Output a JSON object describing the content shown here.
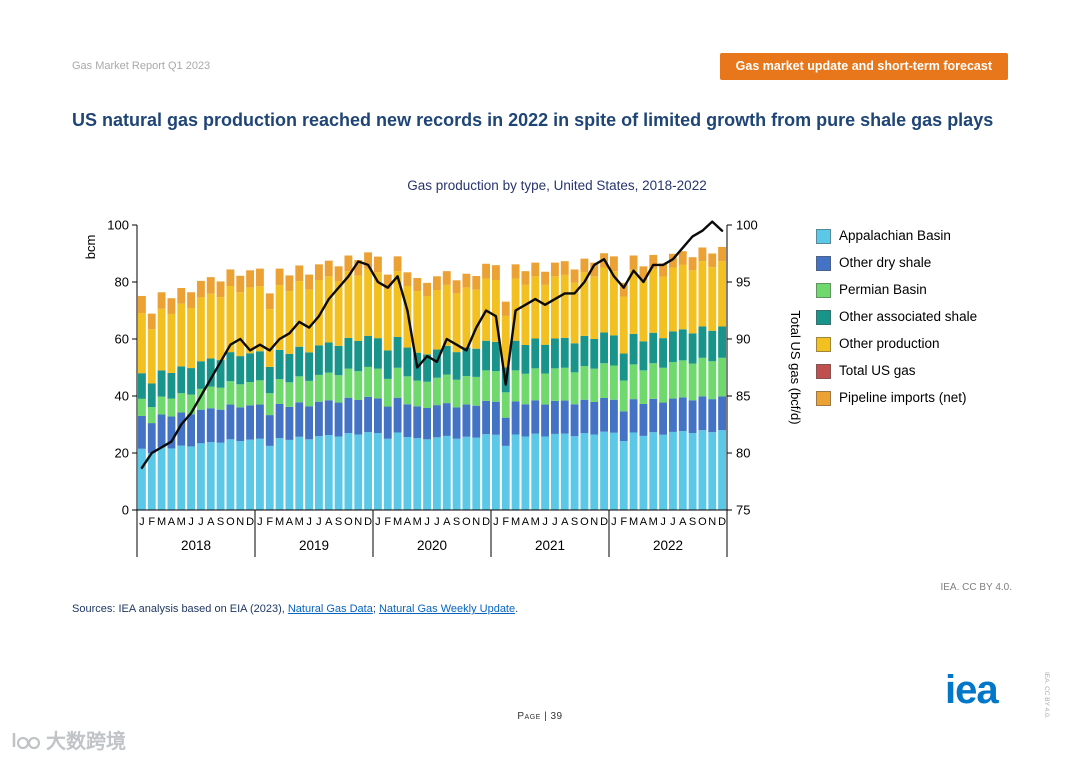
{
  "page": {
    "header_left": "Gas Market Report Q1 2023",
    "banner": "Gas market update and short-term forecast",
    "title": "US natural gas production reached new records in 2022 in spite of limited growth from pure shale gas plays",
    "credit": "IEA. CC BY 4.0.",
    "sources": {
      "prefix": "Sources: IEA analysis based on EIA (2023), ",
      "link1": "Natural Gas Data",
      "separator": "; ",
      "link2": "Natural Gas Weekly Update",
      "suffix": "."
    },
    "footer_page": "Page | 39",
    "logo": "iea",
    "side_note": "IEA. CC BY 4.0.",
    "watermark": "大数跨境",
    "colors": {
      "banner": "#E8761A",
      "title": "#1F4577",
      "link": "#0563C1",
      "logo": "#0077C8"
    }
  },
  "chart_data": {
    "type": "bar",
    "overlay": "line",
    "title": "Gas production by type, United States, 2018-2022",
    "ylabel_left": "bcm",
    "ylabel_right": "Total US gas (bcf/d)",
    "ylim_left": [
      0,
      100
    ],
    "ylim_right": [
      75,
      100
    ],
    "yticks_left": [
      0,
      20,
      40,
      60,
      80,
      100
    ],
    "yticks_right": [
      75,
      80,
      85,
      90,
      95,
      100
    ],
    "grid": false,
    "legend_position": "right",
    "years": [
      "2018",
      "2019",
      "2020",
      "2021",
      "2022"
    ],
    "month_letters": [
      "J",
      "F",
      "M",
      "A",
      "M",
      "J",
      "J",
      "A",
      "S",
      "O",
      "N",
      "D"
    ],
    "series": [
      {
        "name": "Appalachian Basin",
        "color": "#5BC8E8",
        "values": [
          21.5,
          20.0,
          22.0,
          21.6,
          22.6,
          22.3,
          23.4,
          23.8,
          23.6,
          24.8,
          24.2,
          24.7,
          25.0,
          22.5,
          25.2,
          24.6,
          25.7,
          24.8,
          25.9,
          26.3,
          25.8,
          27.0,
          26.5,
          27.3,
          27.0,
          25.0,
          27.2,
          25.6,
          25.2,
          24.8,
          25.5,
          26.0,
          25.0,
          25.7,
          25.4,
          26.6,
          26.4,
          22.5,
          26.5,
          25.8,
          26.8,
          25.8,
          26.7,
          26.8,
          25.9,
          27.0,
          26.5,
          27.5,
          27.1,
          24.2,
          27.2,
          26.0,
          27.3,
          26.4,
          27.4,
          27.7,
          27.0,
          28.0,
          27.3,
          28.0
        ]
      },
      {
        "name": "Other dry shale",
        "color": "#4472C4",
        "values": [
          11.5,
          10.5,
          11.5,
          11.2,
          11.6,
          11.3,
          11.8,
          11.9,
          11.6,
          12.2,
          11.8,
          12.0,
          12.0,
          10.8,
          12.0,
          11.6,
          12.1,
          11.6,
          12.1,
          12.2,
          11.9,
          12.4,
          12.1,
          12.4,
          12.2,
          11.3,
          12.2,
          11.5,
          11.2,
          11.0,
          11.3,
          11.5,
          11.0,
          11.3,
          11.2,
          11.7,
          11.6,
          9.9,
          11.6,
          11.3,
          11.7,
          11.2,
          11.6,
          11.6,
          11.2,
          11.7,
          11.4,
          11.8,
          11.6,
          10.4,
          11.7,
          11.2,
          11.7,
          11.3,
          11.7,
          11.8,
          11.5,
          11.9,
          11.6,
          11.9
        ]
      },
      {
        "name": "Permian Basin",
        "color": "#6FD96E",
        "values": [
          6.0,
          5.6,
          6.3,
          6.3,
          6.8,
          6.9,
          7.3,
          7.6,
          7.7,
          8.2,
          8.1,
          8.2,
          8.5,
          7.7,
          8.7,
          8.6,
          9.1,
          8.9,
          9.4,
          9.7,
          9.6,
          10.2,
          10.1,
          10.5,
          10.4,
          9.7,
          10.5,
          9.8,
          9.0,
          9.2,
          9.6,
          10.0,
          9.7,
          10.0,
          10.1,
          10.7,
          10.7,
          8.9,
          10.9,
          10.7,
          11.2,
          10.9,
          11.4,
          11.5,
          11.2,
          11.8,
          11.7,
          12.2,
          12.0,
          10.8,
          12.2,
          11.8,
          12.5,
          12.2,
          12.8,
          13.0,
          12.9,
          13.5,
          13.3,
          13.5
        ]
      },
      {
        "name": "Other associated shale",
        "color": "#18948B",
        "values": [
          9.0,
          8.3,
          9.2,
          9.0,
          9.4,
          9.3,
          9.7,
          9.9,
          9.7,
          10.2,
          9.9,
          10.1,
          10.2,
          9.2,
          10.3,
          10.0,
          10.4,
          10.0,
          10.4,
          10.6,
          10.3,
          10.8,
          10.6,
          10.9,
          10.7,
          10.0,
          10.8,
          10.1,
          9.8,
          9.6,
          9.9,
          10.1,
          9.7,
          10.0,
          9.9,
          10.4,
          10.3,
          8.7,
          10.4,
          10.1,
          10.5,
          10.1,
          10.5,
          10.5,
          10.2,
          10.6,
          10.4,
          10.8,
          10.6,
          9.5,
          10.7,
          10.2,
          10.7,
          10.4,
          10.8,
          10.9,
          10.6,
          11.0,
          10.7,
          11.0
        ]
      },
      {
        "name": "Other production",
        "color": "#F3C022",
        "values": [
          21.1,
          19.0,
          21.6,
          20.7,
          22.0,
          21.1,
          22.4,
          22.7,
          22.1,
          23.2,
          22.4,
          23.1,
          22.8,
          20.3,
          22.7,
          22.0,
          23.0,
          22.0,
          22.9,
          23.2,
          22.6,
          23.4,
          22.9,
          23.6,
          23.1,
          21.6,
          23.1,
          21.6,
          21.6,
          20.5,
          20.9,
          21.4,
          20.6,
          21.1,
          20.7,
          21.8,
          21.7,
          18.1,
          21.8,
          21.1,
          21.8,
          21.0,
          21.8,
          22.1,
          21.3,
          22.3,
          22.0,
          22.8,
          22.5,
          20.0,
          22.5,
          21.5,
          22.5,
          21.6,
          22.4,
          22.6,
          22.1,
          22.9,
          22.3,
          22.9
        ]
      },
      {
        "name": "Total US gas",
        "type": "line",
        "axis": "right",
        "color": "#C0504D",
        "line_color": "#0b0b0b",
        "values": [
          78.7,
          80.0,
          80.5,
          81.0,
          82.5,
          83.5,
          85.0,
          86.5,
          88.0,
          89.5,
          90.0,
          89.0,
          89.5,
          89.0,
          90.0,
          90.5,
          91.5,
          91.0,
          92.0,
          93.5,
          94.5,
          95.5,
          96.8,
          96.5,
          95.0,
          94.5,
          95.5,
          92.5,
          87.5,
          88.5,
          88.0,
          90.0,
          89.5,
          89.0,
          91.0,
          92.5,
          92.0,
          86.0,
          92.5,
          93.0,
          93.5,
          93.0,
          93.5,
          94.0,
          94.0,
          95.0,
          96.5,
          97.0,
          95.5,
          94.5,
          96.0,
          95.0,
          96.5,
          96.5,
          97.0,
          98.0,
          99.0,
          99.5,
          100.3,
          99.5
        ]
      },
      {
        "name": "Pipeline imports (net)",
        "color": "#EBA133",
        "values": [
          6.0,
          5.5,
          5.8,
          5.5,
          5.5,
          5.5,
          5.8,
          5.8,
          5.5,
          5.8,
          5.8,
          6.0,
          6.2,
          5.5,
          5.8,
          5.5,
          5.5,
          5.3,
          5.5,
          5.5,
          5.3,
          5.5,
          5.5,
          5.7,
          5.5,
          5.0,
          5.2,
          4.8,
          4.6,
          4.6,
          4.8,
          4.8,
          4.6,
          4.8,
          4.8,
          5.2,
          5.2,
          5.0,
          5.0,
          4.8,
          4.8,
          4.6,
          4.8,
          4.8,
          4.6,
          4.8,
          4.8,
          5.0,
          5.2,
          4.8,
          5.0,
          4.8,
          4.8,
          4.6,
          4.8,
          4.8,
          4.6,
          4.8,
          4.8,
          5.0
        ]
      }
    ]
  }
}
